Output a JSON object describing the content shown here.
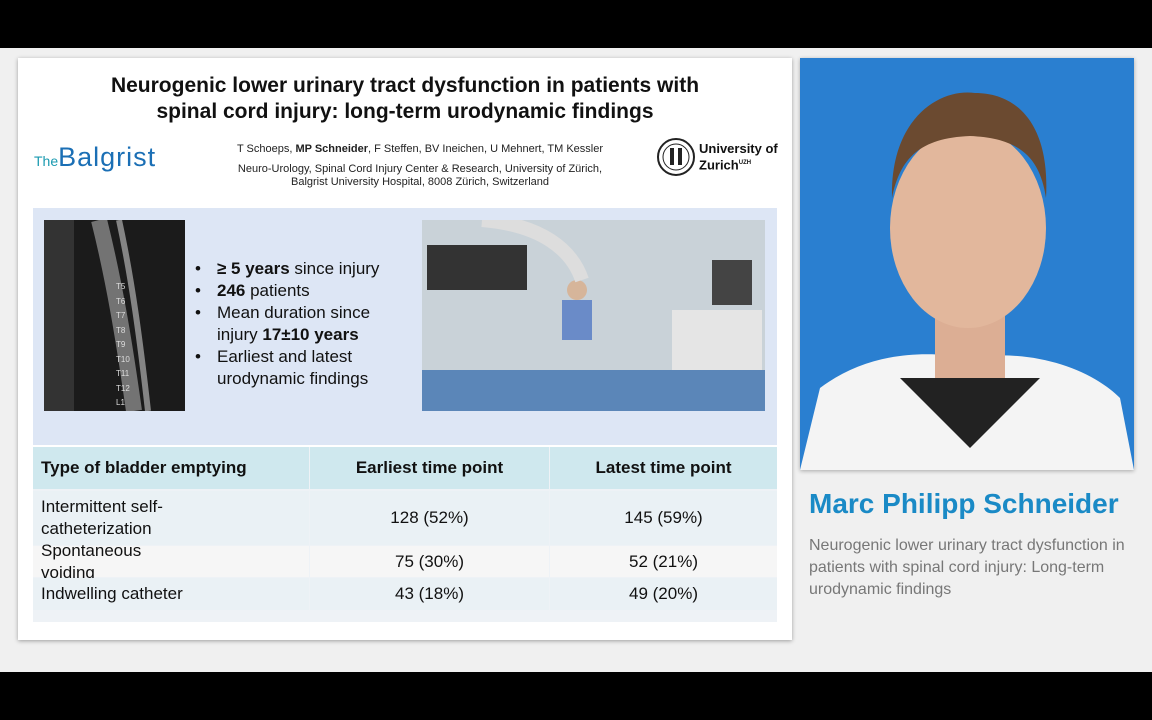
{
  "slide": {
    "title_lines": [
      "Neurogenic lower urinary tract dysfunction in patients with",
      "spinal cord injury: long-term urodynamic findings"
    ],
    "logo_left": {
      "small": "The",
      "big": "Balgrist"
    },
    "logo_right": {
      "line1": "University of",
      "line2": "Zurich",
      "sup": "UZH"
    },
    "authors": [
      {
        "text": "T Schoeps, ",
        "bold": false
      },
      {
        "text": "MP Schneider",
        "bold": true
      },
      {
        "text": ", F Steffen, BV Ineichen, U Mehnert, TM Kessler",
        "bold": false
      }
    ],
    "affiliation_lines": [
      "Neuro-Urology, Spinal Cord Injury Center & Research, University of Zürich,",
      "Balgrist University Hospital, 8008 Zürich, Switzerland"
    ],
    "spine_labels": [
      "T5",
      "T6",
      "T7",
      "T8",
      "T9",
      "T10",
      "T11",
      "T12",
      "L1"
    ],
    "bullets": [
      [
        {
          "text": "≥ 5 years",
          "bold": true
        },
        {
          "text": " since injury",
          "bold": false
        }
      ],
      [
        {
          "text": "246",
          "bold": true
        },
        {
          "text": " patients",
          "bold": false
        }
      ],
      [
        {
          "text": "Mean duration since injury ",
          "bold": false
        },
        {
          "text": "17±10 years",
          "bold": true
        }
      ],
      [
        {
          "text": "Earliest and latest urodynamic findings",
          "bold": false
        }
      ]
    ],
    "table": {
      "header": [
        "Type of bladder emptying",
        "Earliest time point",
        "Latest time point"
      ],
      "rows": [
        [
          "Intermittent self-catheterization",
          "128 (52%)",
          "145 (59%)"
        ],
        [
          "Spontaneous voiding",
          "75 (30%)",
          "52 (21%)"
        ],
        [
          "Indwelling catheter",
          "43 (18%)",
          "49 (20%)"
        ]
      ]
    }
  },
  "speaker": {
    "name": "Marc Philipp Schneider",
    "talk_title": "Neurogenic lower urinary tract dysfunction in patients with spinal cord injury: Long-term urodynamic findings"
  }
}
